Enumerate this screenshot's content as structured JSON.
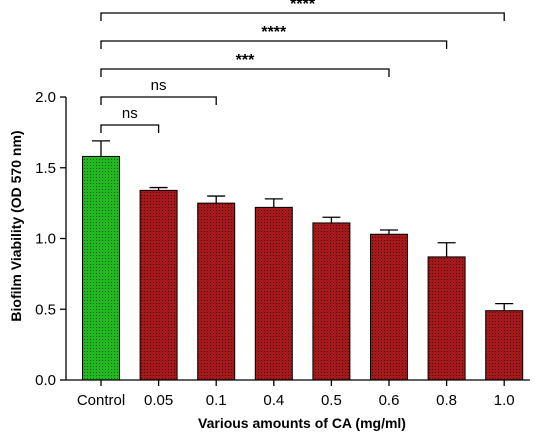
{
  "chart_data": {
    "type": "bar",
    "xlabel": "Various amounts of CA (mg/ml)",
    "ylabel": "Biofilm Viability (OD 570 nm)",
    "ylim": [
      0,
      2.0
    ],
    "yticks": [
      "0.0",
      "0.5",
      "1.0",
      "1.5",
      "2.0"
    ],
    "categories": [
      "Control",
      "0.05",
      "0.1",
      "0.4",
      "0.5",
      "0.6",
      "0.8",
      "1.0"
    ],
    "values": [
      1.58,
      1.34,
      1.25,
      1.22,
      1.11,
      1.03,
      0.87,
      0.49
    ],
    "errors": [
      0.11,
      0.02,
      0.05,
      0.06,
      0.04,
      0.03,
      0.1,
      0.05
    ],
    "bar_colors": [
      "#22b81f",
      "#a6191b",
      "#a6191b",
      "#a6191b",
      "#a6191b",
      "#a6191b",
      "#a6191b",
      "#a6191b"
    ],
    "grid": false,
    "significance": [
      {
        "from": "Control",
        "to": "0.05",
        "label": "ns"
      },
      {
        "from": "Control",
        "to": "0.1",
        "label": "ns"
      },
      {
        "from": "Control",
        "to": "0.6",
        "label": "***"
      },
      {
        "from": "Control",
        "to": "0.8",
        "label": "****"
      },
      {
        "from": "Control",
        "to": "1.0",
        "label": "****"
      }
    ]
  }
}
